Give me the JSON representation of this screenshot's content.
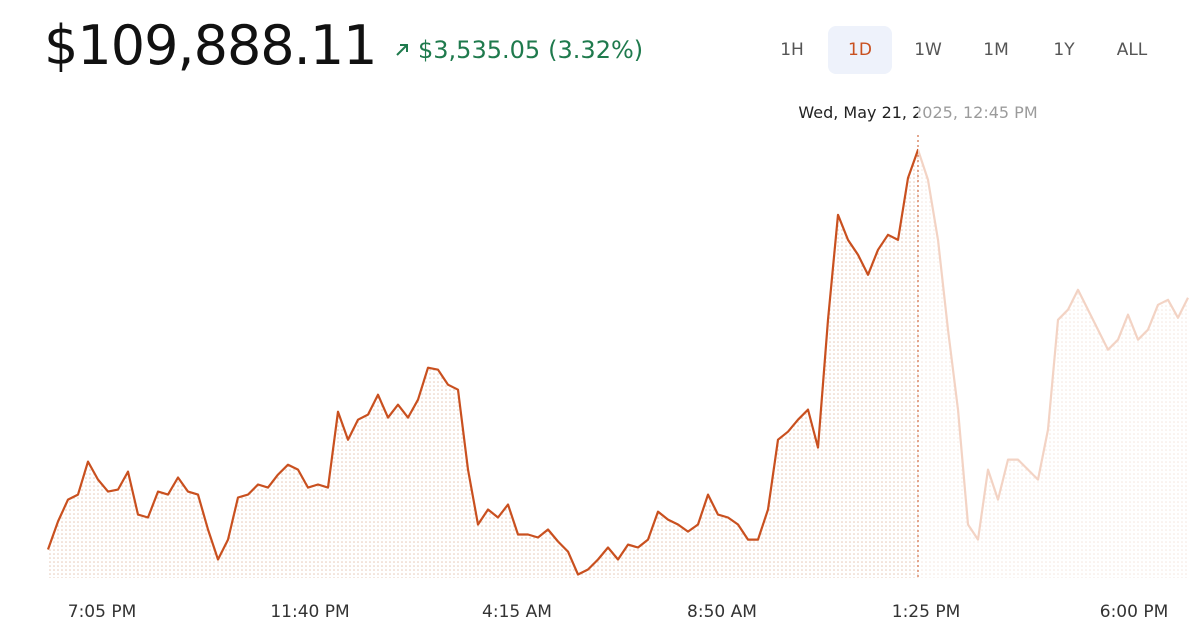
{
  "header": {
    "price": "$109,888.11",
    "change": "$3,535.05",
    "change_percent": "(3.32%)"
  },
  "range_buttons": {
    "items": [
      "1H",
      "1D",
      "1W",
      "1M",
      "1Y",
      "ALL"
    ],
    "active": 1
  },
  "chart_data": {
    "type": "line",
    "tooltip": {
      "label": "Wed, May 21, 2025, 12:45 PM",
      "index": 87
    },
    "series": [
      {
        "color": "#c9501f",
        "faded_color": "#f3d3c4",
        "values": [
          106352,
          106600,
          106794,
          106838,
          107130,
          106971,
          106865,
          106882,
          107042,
          106661,
          106635,
          106865,
          106838,
          106989,
          106865,
          106838,
          106529,
          106264,
          106440,
          106812,
          106838,
          106927,
          106900,
          107015,
          107103,
          107059,
          106900,
          106927,
          106900,
          107572,
          107324,
          107501,
          107546,
          107722,
          107519,
          107634,
          107519,
          107678,
          107961,
          107943,
          107811,
          107766,
          107059,
          106573,
          106706,
          106635,
          106750,
          106485,
          106485,
          106458,
          106529,
          106423,
          106334,
          106131,
          106175,
          106264,
          106370,
          106264,
          106396,
          106370,
          106440,
          106688,
          106617,
          106573,
          106511,
          106573,
          106838,
          106661,
          106635,
          106573,
          106440,
          106440,
          106706,
          107324,
          107395,
          107501,
          107590,
          107254,
          108385,
          109314,
          109092,
          108960,
          108783,
          109004,
          109137,
          109092,
          109640,
          109888,
          109623,
          109092,
          108297,
          107590,
          106573,
          106440,
          107059,
          106794,
          107148,
          107148,
          107059,
          106971,
          107413,
          108385,
          108474,
          108650,
          108474,
          108297,
          108120,
          108209,
          108430,
          108209,
          108297,
          108518,
          108562,
          108403,
          108580
        ]
      }
    ],
    "ylim": [
      106100,
      110330
    ],
    "xlim": [
      0,
      114
    ],
    "xticks": [
      {
        "value": 5.4,
        "label": "7:05 PM"
      },
      {
        "value": 26.2,
        "label": "11:40 PM"
      },
      {
        "value": 46.9,
        "label": "4:15 AM"
      },
      {
        "value": 67.4,
        "label": "8:50 AM"
      },
      {
        "value": 87.8,
        "label": "1:25 PM"
      },
      {
        "value": 108.6,
        "label": "6:00 PM"
      }
    ]
  }
}
